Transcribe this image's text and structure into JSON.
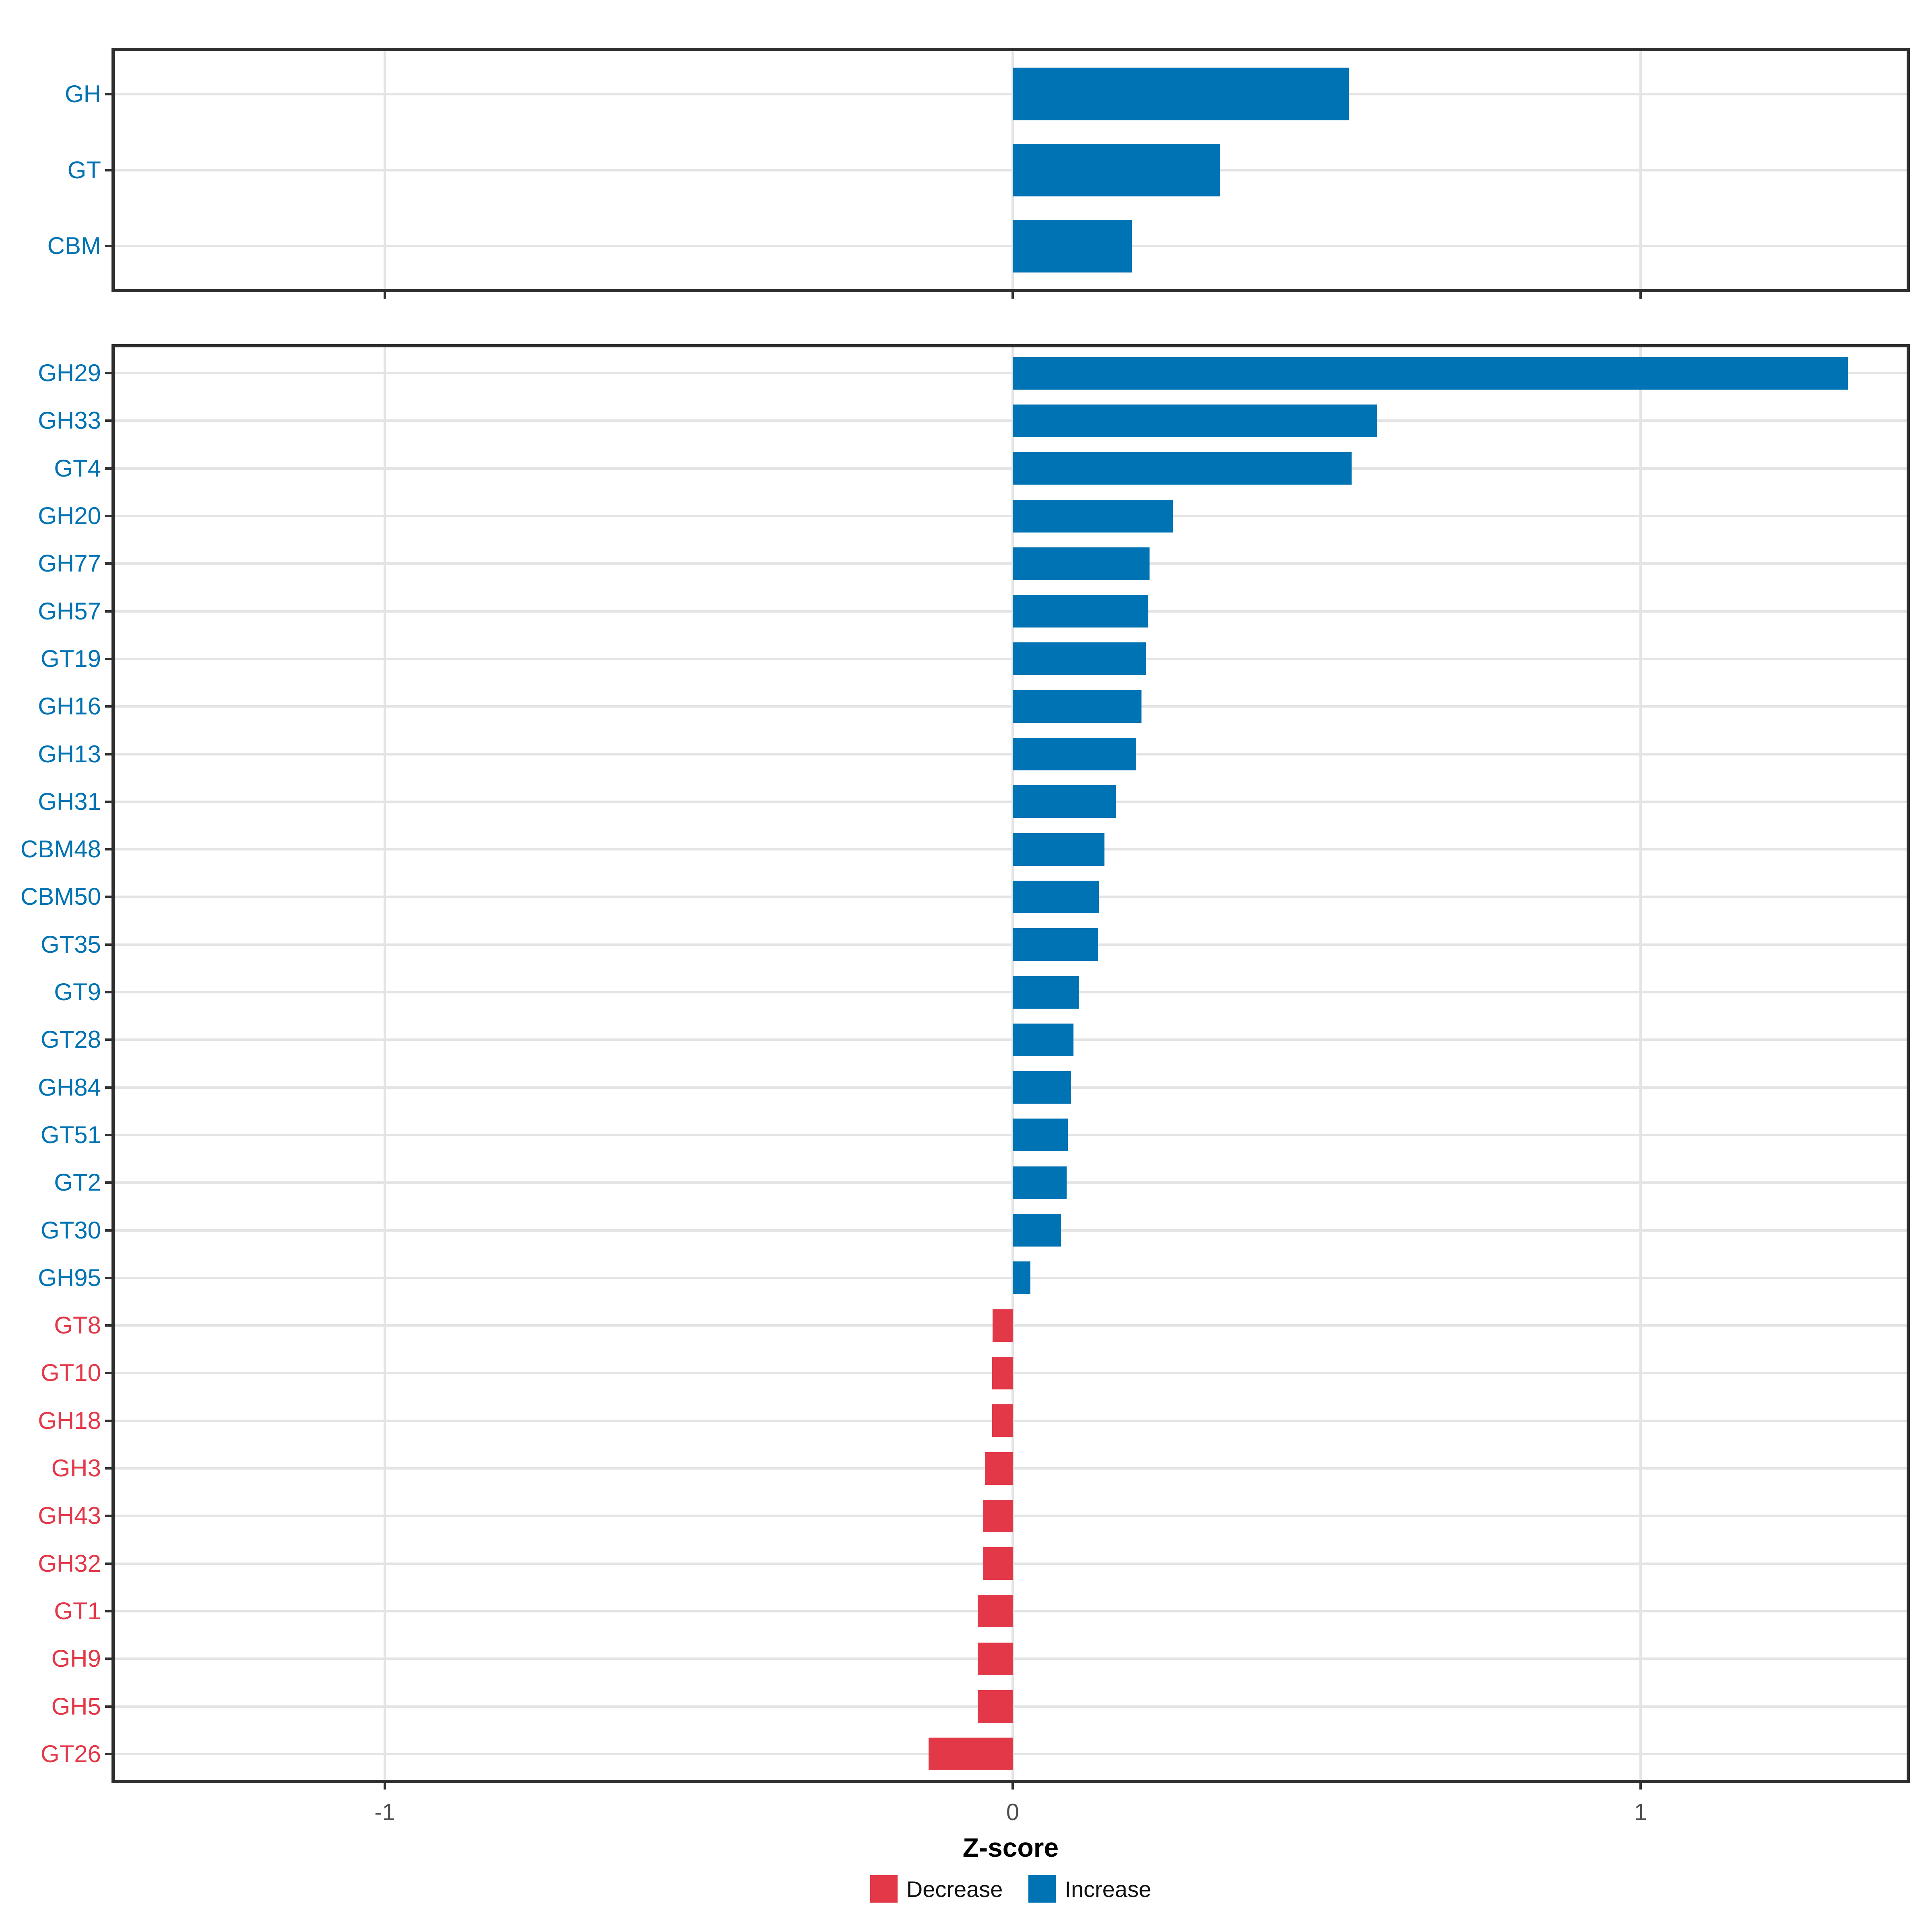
{
  "figure": {
    "background": "#ffffff"
  },
  "colors": {
    "increase": "#0073b4",
    "decrease": "#e33848",
    "grid": "#e4e4e4",
    "panel_border": "#2e2e2e",
    "tick": "#333333",
    "tick_label": "#4d4d4d"
  },
  "chart_data": {
    "type": "bar",
    "orientation": "horizontal",
    "title": "",
    "xlabel": "Z-score",
    "ylabel": "",
    "x_ticks": [
      -1,
      0,
      1
    ],
    "x_tick_labels": [
      "-1",
      "0",
      "1"
    ],
    "xlim": [
      -1.44,
      1.43
    ],
    "grid": true,
    "legend": {
      "position": "bottom",
      "items": [
        {
          "label": "Decrease",
          "color": "#e33848"
        },
        {
          "label": "Increase",
          "color": "#0073b4"
        }
      ]
    },
    "panels": [
      {
        "name": "cazyme-classes",
        "categories": [
          "GH",
          "GT",
          "CBM"
        ],
        "values": [
          0.535,
          0.33,
          0.19
        ],
        "groups": [
          "Increase",
          "Increase",
          "Increase"
        ]
      },
      {
        "name": "cazyme-families",
        "categories": [
          "GH29",
          "GH33",
          "GT4",
          "GH20",
          "GH77",
          "GH57",
          "GT19",
          "GH16",
          "GH13",
          "GH31",
          "CBM48",
          "CBM50",
          "GT35",
          "GT9",
          "GT28",
          "GH84",
          "GT51",
          "GT2",
          "GT30",
          "GH95",
          "GT8",
          "GT10",
          "GH18",
          "GH3",
          "GH43",
          "GH32",
          "GT1",
          "GH9",
          "GH5",
          "GT26"
        ],
        "values": [
          1.33,
          0.58,
          0.54,
          0.255,
          0.218,
          0.216,
          0.212,
          0.205,
          0.197,
          0.164,
          0.146,
          0.137,
          0.136,
          0.105,
          0.097,
          0.093,
          0.088,
          0.086,
          0.077,
          0.028,
          -0.032,
          -0.033,
          -0.033,
          -0.044,
          -0.047,
          -0.047,
          -0.056,
          -0.056,
          -0.056,
          -0.134
        ],
        "groups": [
          "Increase",
          "Increase",
          "Increase",
          "Increase",
          "Increase",
          "Increase",
          "Increase",
          "Increase",
          "Increase",
          "Increase",
          "Increase",
          "Increase",
          "Increase",
          "Increase",
          "Increase",
          "Increase",
          "Increase",
          "Increase",
          "Increase",
          "Increase",
          "Decrease",
          "Decrease",
          "Decrease",
          "Decrease",
          "Decrease",
          "Decrease",
          "Decrease",
          "Decrease",
          "Decrease",
          "Decrease"
        ]
      }
    ]
  }
}
